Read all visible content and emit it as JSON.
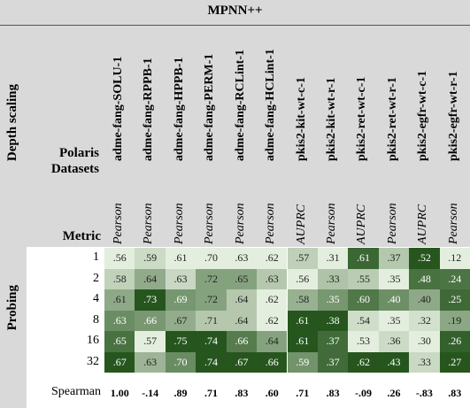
{
  "title": "MPNN++",
  "side_labels": {
    "top": "Depth scaling",
    "bottom": "Probing"
  },
  "header": {
    "datasets_label": "Polaris Datasets",
    "metric_label": "Metric"
  },
  "columns": [
    {
      "dataset": "adme-fang-SOLU-1",
      "metric": "Pearson"
    },
    {
      "dataset": "adme-fang-RPPB-1",
      "metric": "Pearson"
    },
    {
      "dataset": "adme-fang-HPPB-1",
      "metric": "Pearson"
    },
    {
      "dataset": "adme-fang-PERM-1",
      "metric": "Pearson"
    },
    {
      "dataset": "adme-fang-RCLint-1",
      "metric": "Pearson"
    },
    {
      "dataset": "adme-fang-HCLint-1",
      "metric": "Pearson"
    },
    {
      "dataset": "pkis2-kit-wt-c-1",
      "metric": "AUPRC"
    },
    {
      "dataset": "pkis2-kit-wt-r-1",
      "metric": "Pearson"
    },
    {
      "dataset": "pkis2-ret-wt-c-1",
      "metric": "AUPRC"
    },
    {
      "dataset": "pkis2-ret-wt-r-1",
      "metric": "Pearson"
    },
    {
      "dataset": "pkis2-egfr-wt-c-1",
      "metric": "AUPRC"
    },
    {
      "dataset": "pkis2-egfr-wt-r-1",
      "metric": "Pearson"
    }
  ],
  "rows": [
    {
      "label": "1",
      "values": [
        ".56",
        ".59",
        ".61",
        ".70",
        ".63",
        ".62",
        ".57",
        ".31",
        ".61",
        ".37",
        ".52",
        ".12"
      ]
    },
    {
      "label": "2",
      "values": [
        ".58",
        ".64",
        ".63",
        ".72",
        ".65",
        ".63",
        ".56",
        ".33",
        ".55",
        ".35",
        ".48",
        ".24"
      ]
    },
    {
      "label": "4",
      "values": [
        ".61",
        ".73",
        ".69",
        ".72",
        ".64",
        ".62",
        ".58",
        ".35",
        ".60",
        ".40",
        ".40",
        ".25"
      ]
    },
    {
      "label": "8",
      "values": [
        ".63",
        ".66",
        ".67",
        ".71",
        ".64",
        ".62",
        ".61",
        ".38",
        ".54",
        ".35",
        ".32",
        ".19"
      ]
    },
    {
      "label": "16",
      "values": [
        ".65",
        ".57",
        ".75",
        ".74",
        ".66",
        ".64",
        ".61",
        ".37",
        ".53",
        ".36",
        ".30",
        ".26"
      ]
    },
    {
      "label": "32",
      "values": [
        ".67",
        ".63",
        ".70",
        ".74",
        ".67",
        ".66",
        ".59",
        ".37",
        ".62",
        ".43",
        ".33",
        ".27"
      ]
    }
  ],
  "summary": {
    "label": "Spearman",
    "values": [
      "1.00",
      "-.14",
      ".89",
      ".71",
      ".83",
      ".60",
      ".71",
      ".83",
      "-.09",
      ".26",
      "-.83",
      ".83"
    ]
  }
}
